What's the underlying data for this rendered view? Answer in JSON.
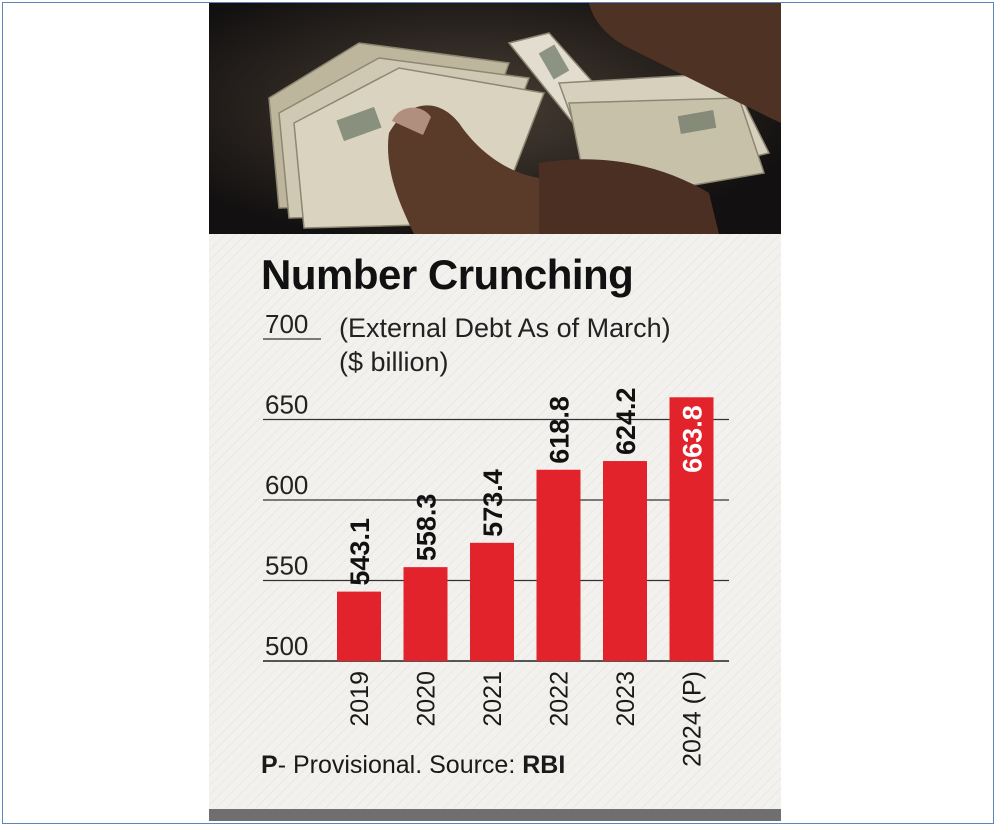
{
  "chart_data": {
    "type": "bar",
    "title": "Number Crunching",
    "subtitle_line1": "(External Debt As of March)",
    "subtitle_line2": "($ billion)",
    "categories": [
      "2019",
      "2020",
      "2021",
      "2022",
      "2023",
      "2024 (P)"
    ],
    "values": [
      543.1,
      558.3,
      573.4,
      618.8,
      624.2,
      663.8
    ],
    "value_labels": [
      "543.1",
      "558.3",
      "573.4",
      "618.8",
      "624.2",
      "663.8"
    ],
    "yticks": [
      "500",
      "550",
      "600",
      "650",
      "700"
    ],
    "ylim": [
      500,
      700
    ],
    "grid": true,
    "bar_color": "#e3232c",
    "highlight_label_color": "#ffffff",
    "label_color": "#111111"
  },
  "footnote": {
    "prefix": "P",
    "text": "- Provisional. Source: ",
    "source": "RBI"
  }
}
